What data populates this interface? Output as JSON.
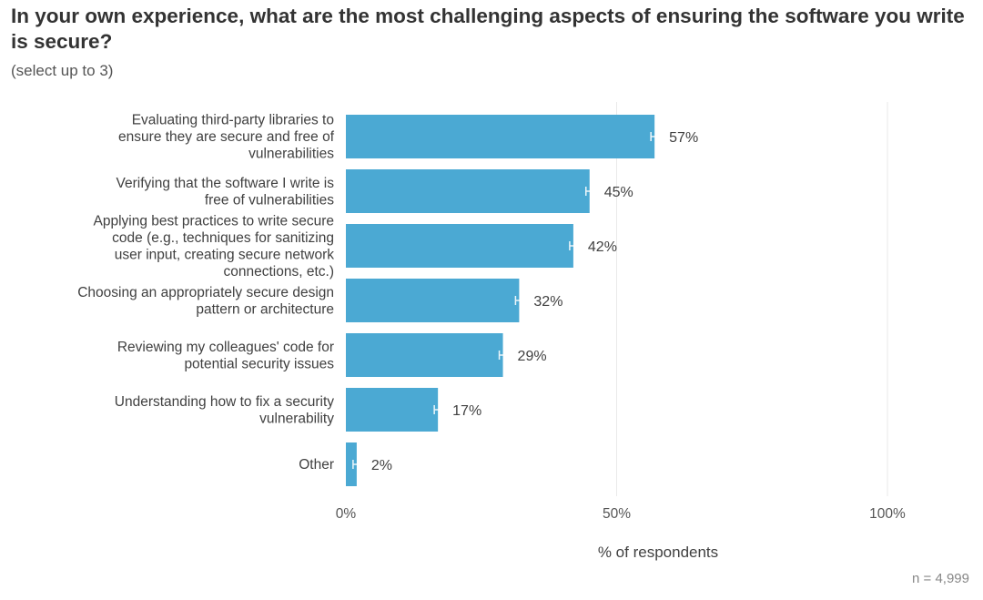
{
  "title": "In your own experience, what are the most challenging aspects of ensuring the software you write is secure?",
  "subtitle": "(select up to 3)",
  "note": "n =  4,999",
  "colors": {
    "bar": "#4ba9d3",
    "grid": "#eaeaea",
    "errorbar": "#ffffff"
  },
  "chart_data": {
    "type": "bar",
    "orientation": "horizontal",
    "categories": [
      [
        "Evaluating third-party libraries to",
        "ensure they are secure and free of",
        "vulnerabilities"
      ],
      [
        "Verifying that the software I write is",
        "free of vulnerabilities"
      ],
      [
        "Applying best practices to write secure",
        "code (e.g., techniques for sanitizing",
        "user input, creating secure network",
        "connections, etc.)"
      ],
      [
        "Choosing an appropriately secure design",
        "pattern or architecture"
      ],
      [
        "Reviewing my colleagues' code for",
        "potential security issues"
      ],
      [
        "Understanding how to fix a security",
        "vulnerability"
      ],
      [
        "Other"
      ]
    ],
    "values": [
      57,
      45,
      42,
      32,
      29,
      17,
      2
    ],
    "value_labels": [
      "57%",
      "45%",
      "42%",
      "32%",
      "29%",
      "17%",
      "2%"
    ],
    "xticks": [
      0,
      50,
      100
    ],
    "xtick_labels": [
      "0%",
      "50%",
      "100%"
    ],
    "xlim": [
      0,
      100
    ],
    "xlabel": "% of respondents",
    "ylabel": "",
    "error_bars": true
  }
}
